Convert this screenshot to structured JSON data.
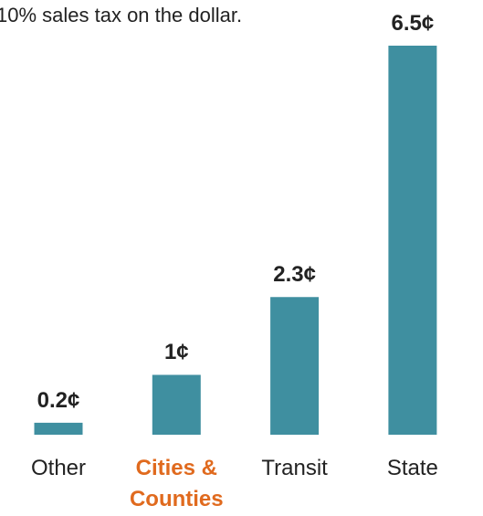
{
  "chart_data": {
    "type": "bar",
    "title": "10% sales tax on the dollar.",
    "categories": [
      "Other",
      "Cities & Counties",
      "Transit",
      "State"
    ],
    "values": [
      0.2,
      1,
      2.3,
      6.5
    ],
    "value_labels": [
      "0.2¢",
      "1¢",
      "2.3¢",
      "6.5¢"
    ],
    "color": "#3f8fa0",
    "category_colors": [
      "#222222",
      "#e06a1e",
      "#222222",
      "#222222"
    ],
    "category_bold": [
      false,
      true,
      false,
      false
    ]
  }
}
